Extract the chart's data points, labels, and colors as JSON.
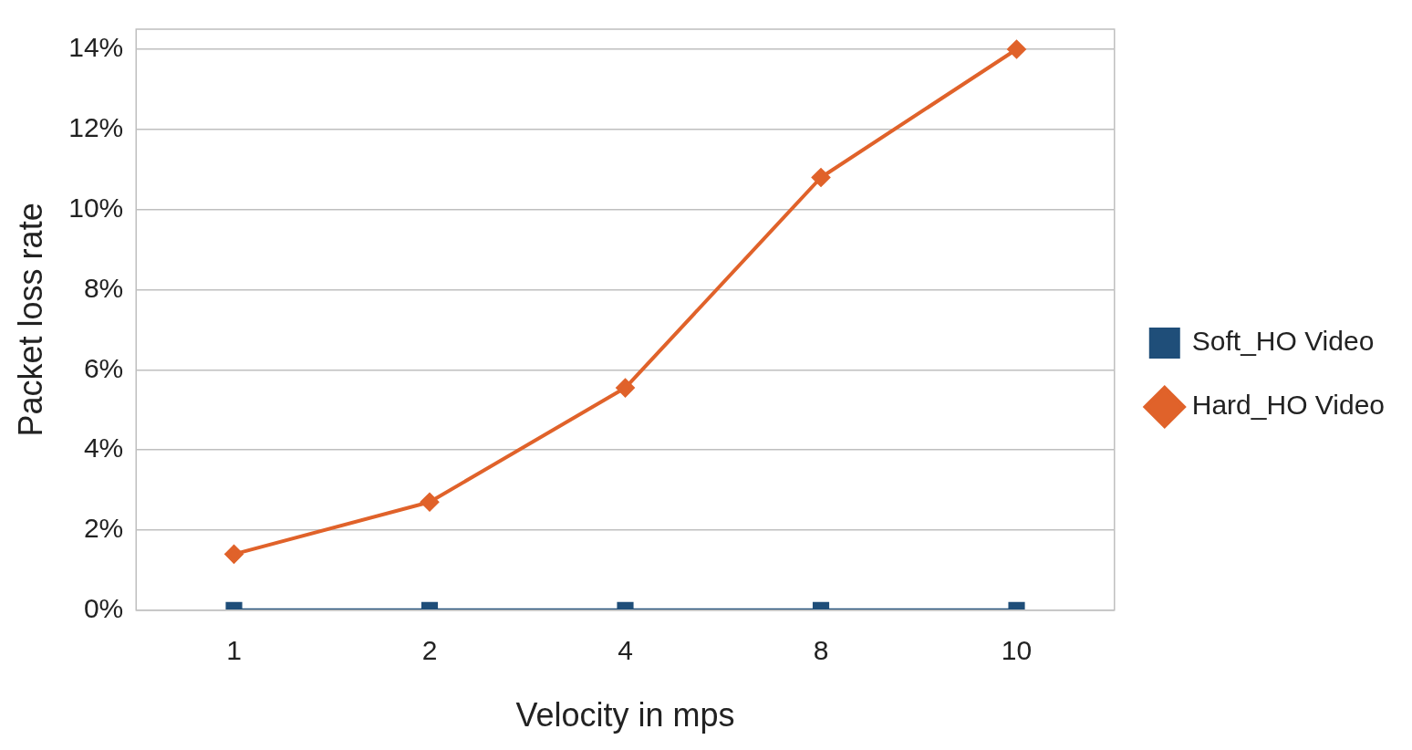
{
  "chart_data": {
    "type": "line",
    "xlabel": "Velocity in mps",
    "ylabel": "Packet loss rate",
    "categories": [
      "1",
      "2",
      "4",
      "8",
      "10"
    ],
    "series": [
      {
        "name": "Soft_HO Video",
        "color": "#1f4e79",
        "marker": "square",
        "values": [
          0,
          0,
          0,
          0,
          0
        ]
      },
      {
        "name": "Hard_HO Video",
        "color": "#e0622a",
        "marker": "diamond",
        "values": [
          1.4,
          2.7,
          5.55,
          10.8,
          14.0
        ]
      }
    ],
    "ylim": [
      0,
      14.5
    ],
    "yticks": [
      {
        "value": 0,
        "label": "0%"
      },
      {
        "value": 2,
        "label": "2%"
      },
      {
        "value": 4,
        "label": "4%"
      },
      {
        "value": 6,
        "label": "6%"
      },
      {
        "value": 8,
        "label": "8%"
      },
      {
        "value": 10,
        "label": "10%"
      },
      {
        "value": 12,
        "label": "12%"
      },
      {
        "value": 14,
        "label": "14%"
      }
    ],
    "grid": "y",
    "legend": "right"
  }
}
